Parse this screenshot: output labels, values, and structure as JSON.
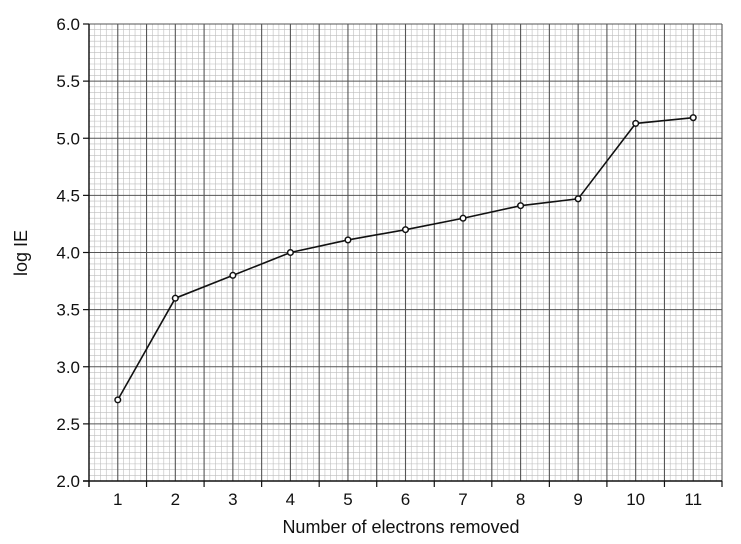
{
  "chart_data": {
    "type": "line",
    "title": "",
    "xlabel": "Number of electrons removed",
    "ylabel": "log IE",
    "x": [
      1,
      2,
      3,
      4,
      5,
      6,
      7,
      8,
      9,
      10,
      11
    ],
    "series": [
      {
        "values": [
          2.71,
          3.6,
          3.8,
          4.0,
          4.11,
          4.2,
          4.3,
          4.41,
          4.47,
          5.13,
          5.18
        ]
      }
    ],
    "xlim": [
      0.5,
      11.5
    ],
    "ylim": [
      2.0,
      6.0
    ],
    "x_ticks": [
      "1",
      "2",
      "3",
      "4",
      "5",
      "6",
      "7",
      "8",
      "9",
      "10",
      "11"
    ],
    "y_ticks": [
      "2.0",
      "2.5",
      "3.0",
      "3.5",
      "4.0",
      "4.5",
      "5.0",
      "5.5",
      "6.0"
    ],
    "grid": true,
    "legend": "none",
    "colors": {
      "line": "#111111",
      "marker_fill": "#ffffff",
      "major_grid": "#555555",
      "minor_grid": "#bdbdbd"
    }
  }
}
